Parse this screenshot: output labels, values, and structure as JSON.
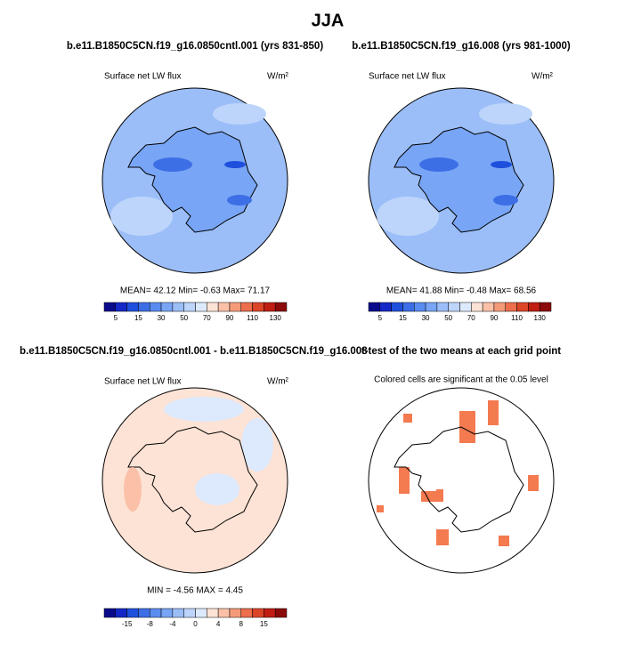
{
  "title": "JJA",
  "panels": [
    {
      "title": "b.e11.B1850C5CN.f19_g16.0850cntl.001 (yrs 831-850)",
      "left_label": "Surface net LW flux",
      "units": "W/m²",
      "stats": "MEAN=  42.12  Min=  -0.63  Max=  71.17"
    },
    {
      "title": "b.e11.B1850C5CN.f19_g16.008 (yrs 981-1000)",
      "left_label": "Surface net LW flux",
      "units": "W/m²",
      "stats": "MEAN=  41.88  Min=  -0.48  Max=  68.56"
    },
    {
      "title": "b.e11.B1850C5CN.f19_g16.0850cntl.001 - b.e11.B1850C5CN.f19_g16.008",
      "left_label": "Surface net LW flux",
      "units": "W/m²",
      "stats": "MIN =  -4.56 MAX =  4.45"
    },
    {
      "title": "t-test of the two means at each grid point",
      "subtitle": "Colored cells are significant at the 0.05 level"
    }
  ],
  "colorbars": [
    {
      "labels": [
        "5",
        "15",
        "30",
        "50",
        "70",
        "90",
        "110",
        "130"
      ],
      "colors": [
        "#0a0a8c",
        "#1428c8",
        "#1e50dc",
        "#3c6ee6",
        "#5a8cf0",
        "#78a5f5",
        "#9bbef8",
        "#bdd5fb",
        "#dde9fc",
        "#fde3d5",
        "#fbc1a8",
        "#f59a78",
        "#ec6e4c",
        "#dc4428",
        "#c01e12",
        "#8c0a0a"
      ]
    },
    {
      "labels": [
        "5",
        "15",
        "30",
        "50",
        "70",
        "90",
        "110",
        "130"
      ],
      "colors": [
        "#0a0a8c",
        "#1428c8",
        "#1e50dc",
        "#3c6ee6",
        "#5a8cf0",
        "#78a5f5",
        "#9bbef8",
        "#bdd5fb",
        "#dde9fc",
        "#fde3d5",
        "#fbc1a8",
        "#f59a78",
        "#ec6e4c",
        "#dc4428",
        "#c01e12",
        "#8c0a0a"
      ]
    },
    {
      "labels": [
        "-15",
        "-8",
        "-4",
        "0",
        "4",
        "8",
        "15"
      ],
      "colors": [
        "#0a0a8c",
        "#1428c8",
        "#1e50dc",
        "#3c6ee6",
        "#5a8cf0",
        "#78a5f5",
        "#9bbef8",
        "#bdd5fb",
        "#dde9fc",
        "#fde3d5",
        "#fbc1a8",
        "#f59a78",
        "#ec6e4c",
        "#dc4428",
        "#c01e12",
        "#8c0a0a"
      ]
    }
  ]
}
